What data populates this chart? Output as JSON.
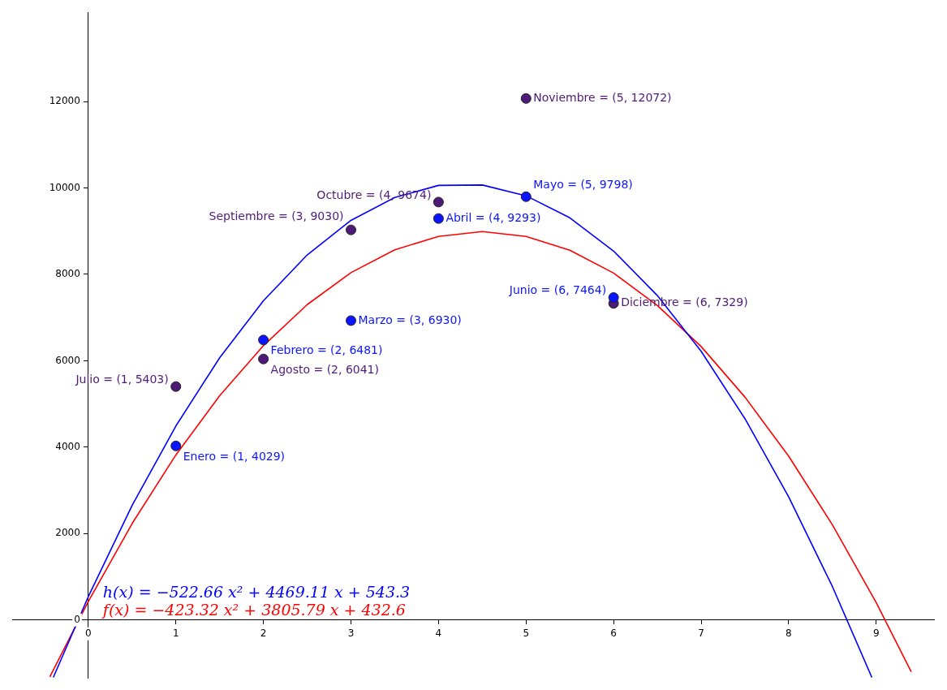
{
  "chart_data": {
    "type": "scatter",
    "xlim": [
      -0.87,
      9.66
    ],
    "ylim": [
      -1340,
      14070
    ],
    "xticks": [
      0,
      1,
      2,
      3,
      4,
      5,
      6,
      7,
      8,
      9
    ],
    "yticks": [
      0,
      2000,
      4000,
      6000,
      8000,
      10000,
      12000
    ],
    "grid": false,
    "legend": false,
    "series": [
      {
        "marker": "circle",
        "color": "#0a14ff",
        "x": [
          1,
          2,
          3,
          4,
          5,
          6
        ],
        "values": [
          4029,
          6481,
          6930,
          9293,
          9798,
          7464
        ],
        "value_labels": [
          "Enero = (1, 4029)",
          "Febrero = (2, 6481)",
          "Marzo = (3, 6930)",
          "Abril = (4, 9293)",
          "Mayo = (5, 9798)",
          "Junio = (6, 7464)"
        ]
      },
      {
        "marker": "circle",
        "color": "#4e1a78",
        "x": [
          1,
          2,
          3,
          4,
          5,
          6
        ],
        "values": [
          5403,
          6041,
          9030,
          9674,
          12072,
          7329
        ],
        "value_labels": [
          "Julio = (1, 5403)",
          "Agosto = (2, 6041)",
          "Septiembre = (3, 9030)",
          "Octubre = (4, 9674)",
          "Noviembre = (5, 12072)",
          "Diciembre = (6, 7329)"
        ]
      },
      {
        "type": "line",
        "name": "h(x) = −522.66 x² + 4469.11 x + 543.3",
        "color": "#0000ff",
        "x": [
          -0.4,
          0,
          0.5,
          1,
          1.5,
          2,
          2.5,
          3,
          3.5,
          4,
          4.5,
          5,
          5.5,
          6,
          6.5,
          7,
          7.5,
          8,
          8.5,
          8.95
        ],
        "values": [
          -1330,
          540,
          2650,
          4490,
          6070,
          7390,
          8450,
          9250,
          9780,
          10060,
          10070,
          9820,
          9310,
          8540,
          7510,
          6220,
          4660,
          2850,
          770,
          -1330
        ]
      },
      {
        "type": "line",
        "name": "f(x) = −423.32 x² + 3805.79 x + 432.6",
        "color": "#ff0000",
        "x": [
          -0.44,
          0,
          0.5,
          1,
          1.5,
          2,
          2.5,
          3,
          3.5,
          4,
          4.5,
          5,
          5.5,
          6,
          6.5,
          7,
          7.5,
          8,
          8.5,
          9,
          9.4
        ],
        "values": [
          -1320,
          430,
          2230,
          3820,
          5190,
          6350,
          7300,
          8040,
          8570,
          8880,
          8990,
          8880,
          8560,
          8030,
          7280,
          6330,
          5160,
          3790,
          2200,
          400,
          -1200
        ]
      }
    ]
  }
}
